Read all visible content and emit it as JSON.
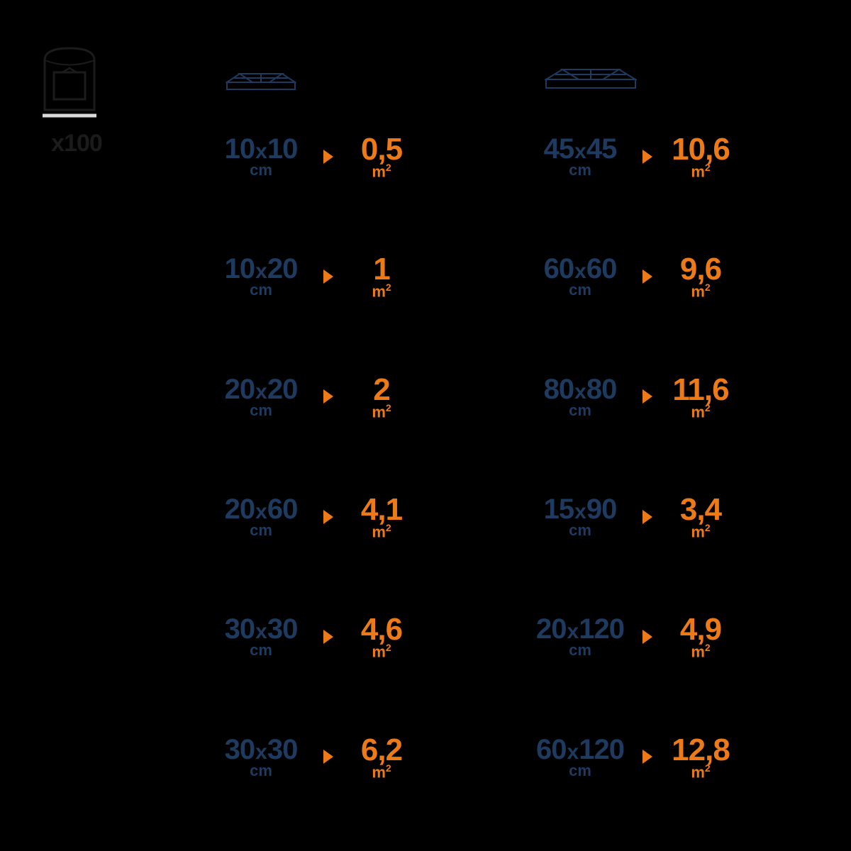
{
  "colors": {
    "background": "#000000",
    "dim_text": "#1b1b1b",
    "size_blue": "#1e3a5f",
    "area_orange": "#ec7a18",
    "icon_stroke": "#1e3a5f",
    "underline": "#d9d9d9"
  },
  "quantity_label": "x100",
  "size_unit": "cm",
  "area_unit": "m",
  "area_unit_exp": "2",
  "columns": [
    {
      "rows": [
        {
          "w": "10",
          "h": "10",
          "area": "0,5"
        },
        {
          "w": "10",
          "h": "20",
          "area": "1"
        },
        {
          "w": "20",
          "h": "20",
          "area": "2"
        },
        {
          "w": "20",
          "h": "60",
          "area": "4,1"
        },
        {
          "w": "30",
          "h": "30",
          "area": "4,6"
        },
        {
          "w": "30",
          "h": "30",
          "area": "6,2"
        }
      ]
    },
    {
      "rows": [
        {
          "w": "45",
          "h": "45",
          "area": "10,6"
        },
        {
          "w": "60",
          "h": "60",
          "area": "9,6"
        },
        {
          "w": "80",
          "h": "80",
          "area": "11,6"
        },
        {
          "w": "15",
          "h": "90",
          "area": "3,4"
        },
        {
          "w": "20",
          "h": "120",
          "area": "4,9"
        },
        {
          "w": "60",
          "h": "120",
          "area": "12,8"
        }
      ]
    }
  ]
}
